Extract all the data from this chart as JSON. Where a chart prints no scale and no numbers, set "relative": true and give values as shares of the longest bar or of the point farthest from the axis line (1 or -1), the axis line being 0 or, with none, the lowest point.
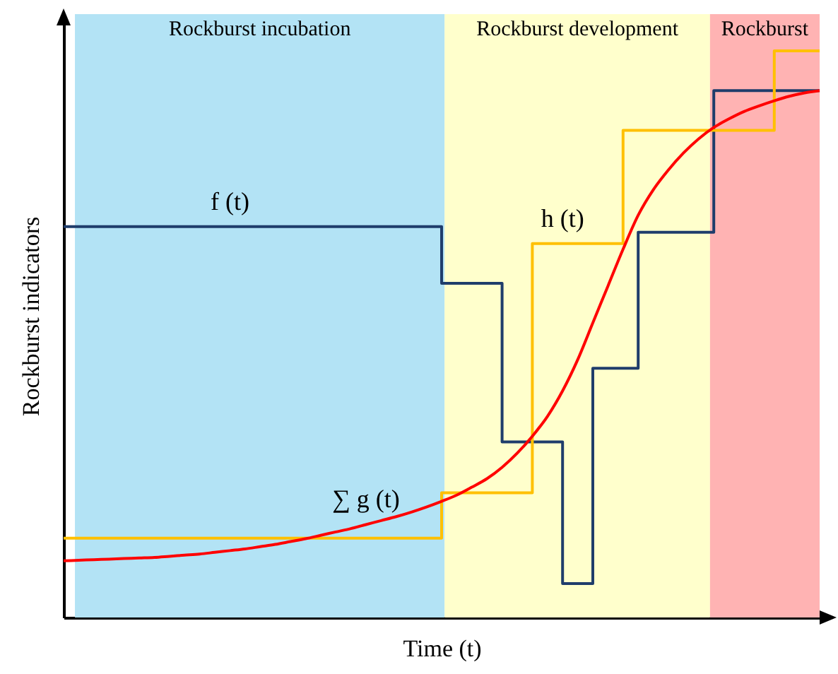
{
  "chart_data": {
    "type": "step",
    "relative": true,
    "xlabel": "Time (t)",
    "ylabel": "Rockburst indicators",
    "legend": false,
    "grid": false,
    "categories": [
      null,
      null,
      null,
      null,
      null,
      null,
      null,
      null,
      null,
      null,
      null,
      null,
      null,
      null,
      null,
      null,
      null,
      null,
      null,
      null,
      null,
      null,
      null,
      null,
      null,
      null,
      null,
      null,
      null,
      null,
      null,
      null,
      null,
      null,
      null,
      null,
      null,
      null,
      null,
      null,
      null,
      null,
      null,
      null,
      null,
      null,
      null,
      null,
      null,
      null,
      null
    ],
    "series": [
      {
        "name": "f (t)",
        "color": "#1f3d6b",
        "values": [
          0.69,
          0.69,
          0.69,
          0.69,
          0.69,
          0.69,
          0.69,
          0.69,
          0.69,
          0.69,
          0.69,
          0.69,
          0.69,
          0.69,
          0.69,
          0.69,
          0.69,
          0.69,
          0.69,
          0.69,
          0.69,
          0.69,
          0.69,
          0.69,
          0.69,
          0.59,
          0.59,
          0.59,
          0.59,
          0.31,
          0.31,
          0.31,
          0.31,
          0.06,
          0.06,
          0.44,
          0.44,
          0.44,
          0.68,
          0.68,
          0.68,
          0.68,
          0.68,
          0.93,
          0.93,
          0.93,
          0.93,
          0.93,
          0.93,
          0.93,
          0.93
        ]
      },
      {
        "name": "h (t)",
        "color": "#ffc000",
        "values": [
          0.14,
          0.14,
          0.14,
          0.14,
          0.14,
          0.14,
          0.14,
          0.14,
          0.14,
          0.14,
          0.14,
          0.14,
          0.14,
          0.14,
          0.14,
          0.14,
          0.14,
          0.14,
          0.14,
          0.14,
          0.14,
          0.14,
          0.14,
          0.14,
          0.14,
          0.22,
          0.22,
          0.22,
          0.22,
          0.22,
          0.22,
          0.66,
          0.66,
          0.66,
          0.66,
          0.66,
          0.66,
          0.86,
          0.86,
          0.86,
          0.86,
          0.86,
          0.86,
          0.86,
          0.86,
          0.86,
          0.86,
          1.0,
          1.0,
          1.0,
          1.0
        ]
      },
      {
        "name": "∑ g (t)",
        "type": "line",
        "color": "#ff0000",
        "values": [
          0.1,
          0.101,
          0.102,
          0.103,
          0.104,
          0.105,
          0.106,
          0.108,
          0.11,
          0.112,
          0.115,
          0.118,
          0.121,
          0.125,
          0.129,
          0.134,
          0.139,
          0.145,
          0.151,
          0.157,
          0.164,
          0.171,
          0.178,
          0.186,
          0.195,
          0.205,
          0.216,
          0.23,
          0.245,
          0.265,
          0.29,
          0.32,
          0.355,
          0.4,
          0.455,
          0.52,
          0.585,
          0.65,
          0.71,
          0.755,
          0.79,
          0.82,
          0.845,
          0.865,
          0.88,
          0.893,
          0.903,
          0.912,
          0.92,
          0.926,
          0.93
        ]
      }
    ],
    "annotations": [
      "Rockburst incubation",
      "Rockburst development",
      "Rockburst"
    ]
  }
}
